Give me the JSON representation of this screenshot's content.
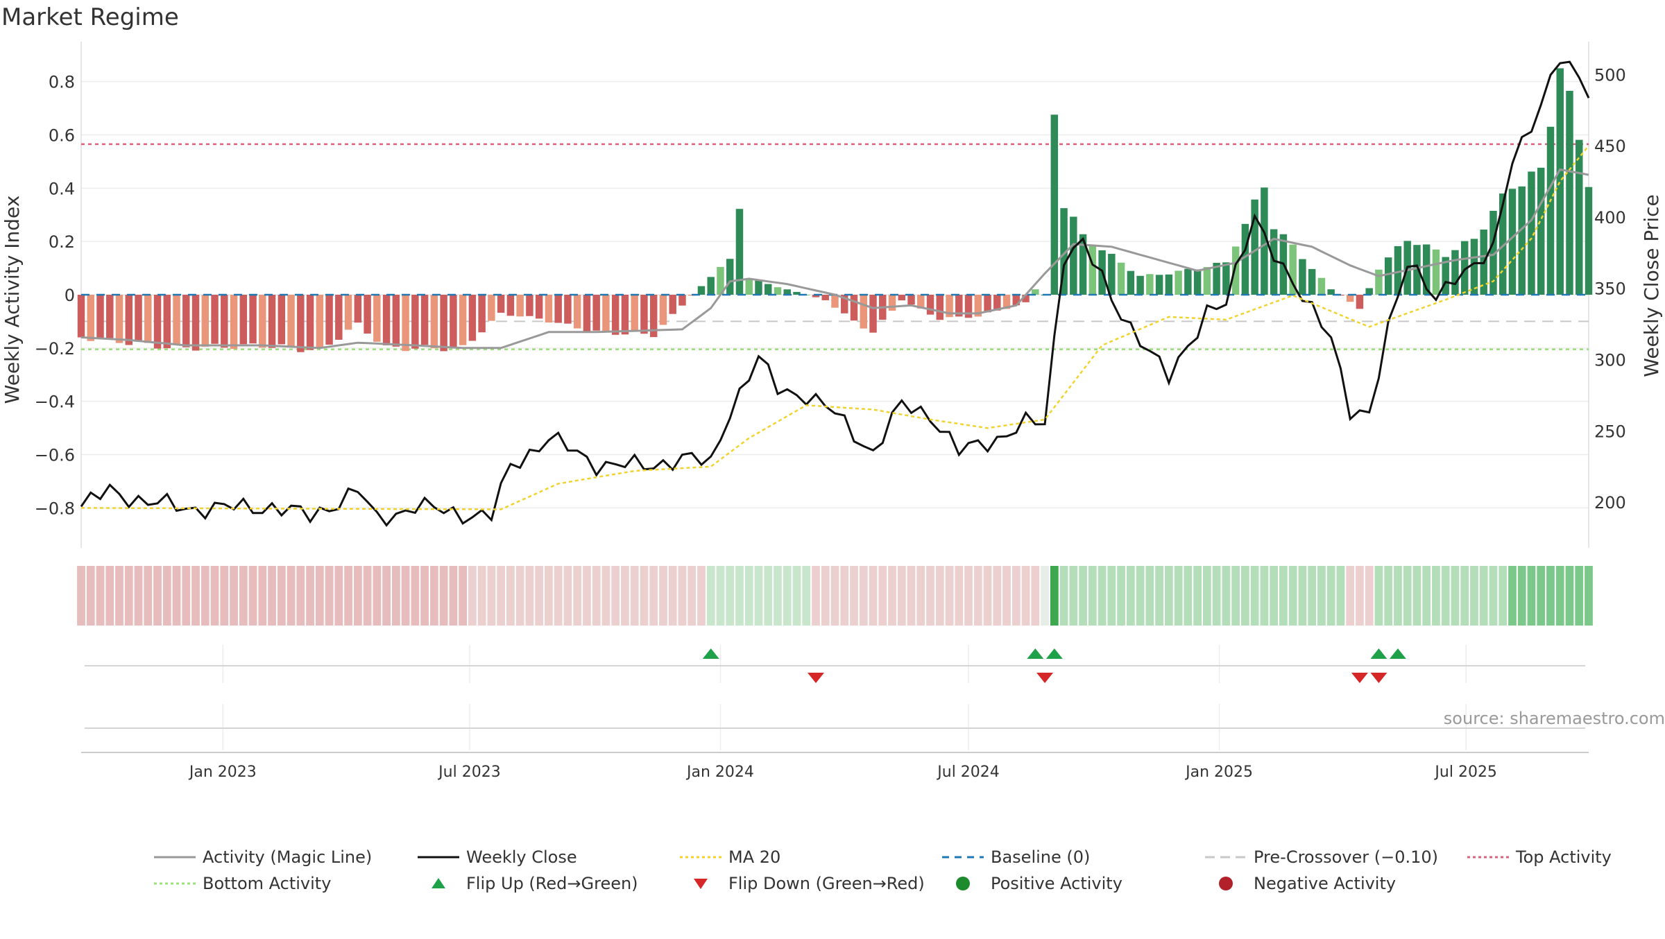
{
  "title": "Market Regime",
  "source": "source: sharemaestro.com",
  "colors": {
    "magic_line": "#999999",
    "close": "#111111",
    "ma20": "#f0d32e",
    "baseline": "#1f77b4",
    "pre_crossover": "#c8c8c8",
    "top_activity": "#e0607a",
    "bottom_activity": "#9be07a",
    "flip_up": "#1fa14a",
    "flip_down": "#d62728",
    "pos_strong": "#2e8b57",
    "pos_weak": "#7cc47a",
    "neg_strong": "#cd5c5c",
    "neg_weak": "#e9967a"
  },
  "chart_data": {
    "type": "bar",
    "title": "Market Regime",
    "x_axis": {
      "type": "date",
      "start": "2022-09-19",
      "end": "2025-09-29",
      "ticks": [
        "2023-01-01",
        "2023-07-01",
        "2024-01-01",
        "2024-07-01",
        "2025-01-01",
        "2025-07-01"
      ],
      "tick_labels": [
        "Jan 2023",
        "Jul 2023",
        "Jan 2024",
        "Jul 2024",
        "Jan 2025",
        "Jul 2025"
      ]
    },
    "y_left": {
      "label": "Weekly Activity Index",
      "range": [
        -0.95,
        0.95
      ],
      "ticks": [
        -0.8,
        -0.6,
        -0.4,
        -0.2,
        0,
        0.2,
        0.4,
        0.6,
        0.8
      ],
      "tick_labels": [
        "−0.8",
        "−0.6",
        "−0.4",
        "−0.2",
        "0",
        "0.2",
        "0.4",
        "0.6",
        "0.8"
      ]
    },
    "y_right": {
      "label": "Weekly Close Price",
      "range": [
        168,
        523
      ],
      "ticks": [
        200,
        250,
        300,
        350,
        400,
        450,
        500
      ],
      "tick_labels": [
        "200",
        "250",
        "300",
        "350",
        "400",
        "450",
        "500"
      ]
    },
    "reference_lines": {
      "baseline": 0,
      "pre_crossover": -0.1,
      "top_activity": 0.565,
      "bottom_activity": -0.205
    },
    "grid": true,
    "legend_position": "bottom",
    "series": [
      {
        "name": "Activity (Magic Line)",
        "type": "line",
        "axis": "left",
        "knots": [
          [
            "2022-09-19",
            -0.16
          ],
          [
            "2022-10-24",
            -0.17
          ],
          [
            "2022-12-05",
            -0.19
          ],
          [
            "2023-01-30",
            -0.19
          ],
          [
            "2023-03-13",
            -0.2
          ],
          [
            "2023-04-10",
            -0.18
          ],
          [
            "2023-05-22",
            -0.19
          ],
          [
            "2023-06-26",
            -0.2
          ],
          [
            "2023-07-24",
            -0.2
          ],
          [
            "2023-08-28",
            -0.14
          ],
          [
            "2023-10-02",
            -0.14
          ],
          [
            "2023-12-04",
            -0.13
          ],
          [
            "2023-12-25",
            -0.05
          ],
          [
            "2024-01-08",
            0.05
          ],
          [
            "2024-01-22",
            0.06
          ],
          [
            "2024-02-19",
            0.04
          ],
          [
            "2024-03-25",
            0.0
          ],
          [
            "2024-04-22",
            -0.05
          ],
          [
            "2024-05-20",
            -0.04
          ],
          [
            "2024-06-17",
            -0.07
          ],
          [
            "2024-07-08",
            -0.07
          ],
          [
            "2024-08-05",
            -0.04
          ],
          [
            "2024-08-26",
            0.08
          ],
          [
            "2024-09-16",
            0.19
          ],
          [
            "2024-10-14",
            0.18
          ],
          [
            "2024-11-18",
            0.13
          ],
          [
            "2024-12-16",
            0.09
          ],
          [
            "2025-01-13",
            0.12
          ],
          [
            "2025-02-10",
            0.21
          ],
          [
            "2025-03-10",
            0.18
          ],
          [
            "2025-04-07",
            0.11
          ],
          [
            "2025-04-28",
            0.07
          ],
          [
            "2025-05-26",
            0.1
          ],
          [
            "2025-06-23",
            0.13
          ],
          [
            "2025-07-21",
            0.15
          ],
          [
            "2025-08-18",
            0.28
          ],
          [
            "2025-09-08",
            0.47
          ],
          [
            "2025-09-29",
            0.45
          ]
        ]
      },
      {
        "name": "Weekly Close",
        "type": "line",
        "axis": "right",
        "knots": [
          [
            "2022-09-19",
            197
          ],
          [
            "2022-10-10",
            208
          ],
          [
            "2022-11-07",
            200
          ],
          [
            "2022-12-05",
            196
          ],
          [
            "2023-01-09",
            196
          ],
          [
            "2023-02-06",
            197
          ],
          [
            "2023-03-06",
            190
          ],
          [
            "2023-04-10",
            208
          ],
          [
            "2023-04-24",
            188
          ],
          [
            "2023-05-22",
            197
          ],
          [
            "2023-06-26",
            192
          ],
          [
            "2023-07-17",
            190
          ],
          [
            "2023-07-31",
            225
          ],
          [
            "2023-08-28",
            245
          ],
          [
            "2023-10-02",
            227
          ],
          [
            "2023-11-06",
            225
          ],
          [
            "2023-12-04",
            231
          ],
          [
            "2023-12-25",
            227
          ],
          [
            "2024-01-08",
            265
          ],
          [
            "2024-01-29",
            300
          ],
          [
            "2024-02-12",
            280
          ],
          [
            "2024-03-04",
            275
          ],
          [
            "2024-03-25",
            262
          ],
          [
            "2024-04-22",
            235
          ],
          [
            "2024-05-13",
            268
          ],
          [
            "2024-06-03",
            262
          ],
          [
            "2024-06-24",
            235
          ],
          [
            "2024-07-22",
            245
          ],
          [
            "2024-08-12",
            255
          ],
          [
            "2024-08-26",
            255
          ],
          [
            "2024-09-09",
            374
          ],
          [
            "2024-09-23",
            382
          ],
          [
            "2024-10-14",
            342
          ],
          [
            "2024-11-04",
            315
          ],
          [
            "2024-11-25",
            286
          ],
          [
            "2024-12-23",
            335
          ],
          [
            "2025-01-06",
            338
          ],
          [
            "2025-01-27",
            402
          ],
          [
            "2025-02-24",
            350
          ],
          [
            "2025-03-24",
            320
          ],
          [
            "2025-04-07",
            262
          ],
          [
            "2025-04-21",
            258
          ],
          [
            "2025-05-05",
            325
          ],
          [
            "2025-05-19",
            370
          ],
          [
            "2025-06-09",
            340
          ],
          [
            "2025-06-23",
            360
          ],
          [
            "2025-07-21",
            375
          ],
          [
            "2025-08-04",
            440
          ],
          [
            "2025-08-25",
            480
          ],
          [
            "2025-09-08",
            510
          ],
          [
            "2025-09-29",
            490
          ]
        ]
      },
      {
        "name": "MA 20",
        "type": "line",
        "axis": "right",
        "knots": [
          [
            "2022-09-19",
            196
          ],
          [
            "2023-07-24",
            195
          ],
          [
            "2023-09-04",
            213
          ],
          [
            "2023-10-30",
            222
          ],
          [
            "2023-12-25",
            225
          ],
          [
            "2024-01-22",
            245
          ],
          [
            "2024-03-04",
            268
          ],
          [
            "2024-04-22",
            265
          ],
          [
            "2024-06-03",
            258
          ],
          [
            "2024-07-15",
            252
          ],
          [
            "2024-08-26",
            258
          ],
          [
            "2024-10-07",
            310
          ],
          [
            "2024-11-25",
            330
          ],
          [
            "2025-01-06",
            328
          ],
          [
            "2025-02-24",
            345
          ],
          [
            "2025-04-21",
            323
          ],
          [
            "2025-06-16",
            342
          ],
          [
            "2025-07-21",
            355
          ],
          [
            "2025-08-18",
            385
          ],
          [
            "2025-09-08",
            425
          ],
          [
            "2025-09-29",
            450
          ]
        ]
      }
    ],
    "activity_bars": [
      [
        "2022-09-19",
        -0.16
      ],
      [
        "2022-10-24",
        -0.18
      ],
      [
        "2022-11-28",
        -0.2
      ],
      [
        "2023-01-30",
        -0.19
      ],
      [
        "2023-03-13",
        -0.21
      ],
      [
        "2023-04-10",
        -0.11
      ],
      [
        "2023-05-01",
        -0.2
      ],
      [
        "2023-06-26",
        -0.2
      ],
      [
        "2023-07-24",
        -0.07
      ],
      [
        "2023-08-21",
        -0.09
      ],
      [
        "2023-10-02",
        -0.14
      ],
      [
        "2023-11-13",
        -0.15
      ],
      [
        "2023-12-25",
        0.07
      ],
      [
        "2024-01-08",
        0.13
      ],
      [
        "2024-01-15",
        0.34
      ],
      [
        "2024-01-22",
        0.06
      ],
      [
        "2024-02-19",
        0.02
      ],
      [
        "2024-03-18",
        -0.02
      ],
      [
        "2024-04-08",
        -0.1
      ],
      [
        "2024-04-22",
        -0.14
      ],
      [
        "2024-05-13",
        -0.02
      ],
      [
        "2024-06-10",
        -0.09
      ],
      [
        "2024-07-08",
        -0.08
      ],
      [
        "2024-08-12",
        -0.03
      ],
      [
        "2024-08-19",
        0.02
      ],
      [
        "2024-08-26",
        0.0
      ],
      [
        "2024-09-02",
        0.7
      ],
      [
        "2024-09-09",
        0.34
      ],
      [
        "2024-09-23",
        0.22
      ],
      [
        "2024-11-04",
        0.07
      ],
      [
        "2024-11-25",
        0.08
      ],
      [
        "2025-01-06",
        0.12
      ],
      [
        "2025-02-03",
        0.41
      ],
      [
        "2025-02-10",
        0.26
      ],
      [
        "2025-03-24",
        0.02
      ],
      [
        "2025-04-14",
        -0.05
      ],
      [
        "2025-04-28",
        0.1
      ],
      [
        "2025-05-19",
        0.21
      ],
      [
        "2025-06-16",
        0.15
      ],
      [
        "2025-07-07",
        0.21
      ],
      [
        "2025-08-04",
        0.41
      ],
      [
        "2025-08-25",
        0.46
      ],
      [
        "2025-09-08",
        0.87
      ],
      [
        "2025-09-29",
        0.43
      ]
    ],
    "regime_strip": [
      [
        "2022-09-19",
        "2023-06-26",
        "#e6bcbc"
      ],
      [
        "2023-07-03",
        "2023-12-18",
        "#ecd0d0"
      ],
      [
        "2023-12-25",
        "2024-03-04",
        "#c8e6cc"
      ],
      [
        "2024-03-11",
        "2024-08-19",
        "#ecd0d0"
      ],
      [
        "2024-08-26",
        "2024-08-26",
        "#e6ece6"
      ],
      [
        "2024-09-02",
        "2024-09-02",
        "#3ea84e"
      ],
      [
        "2024-09-09",
        "2025-03-31",
        "#b4deba"
      ],
      [
        "2025-04-07",
        "2025-04-21",
        "#ecd0d0"
      ],
      [
        "2025-04-28",
        "2025-07-28",
        "#b4deba"
      ],
      [
        "2025-08-04",
        "2025-09-29",
        "#7cc88a"
      ]
    ],
    "signals": {
      "flip_up": [
        "2023-12-25",
        "2024-08-19",
        "2024-09-02",
        "2025-04-28",
        "2025-05-12"
      ],
      "flip_down": [
        "2024-03-11",
        "2024-08-26",
        "2025-04-14",
        "2025-04-28"
      ]
    }
  },
  "legend": [
    {
      "label": "Activity (Magic Line)",
      "kind": "line",
      "color": "#999999",
      "dash": ""
    },
    {
      "label": "Weekly Close",
      "kind": "line",
      "color": "#111111",
      "dash": ""
    },
    {
      "label": "MA 20",
      "kind": "line",
      "color": "#f0d32e",
      "dash": "4,4"
    },
    {
      "label": "Baseline (0)",
      "kind": "line",
      "color": "#1f77b4",
      "dash": "10,8"
    },
    {
      "label": "Pre-Crossover (−0.10)",
      "kind": "line",
      "color": "#c8c8c8",
      "dash": "14,8"
    },
    {
      "label": "Top Activity",
      "kind": "line",
      "color": "#e0607a",
      "dash": "4,4"
    },
    {
      "label": "Bottom Activity",
      "kind": "line",
      "color": "#9be07a",
      "dash": "4,4"
    },
    {
      "label": "Flip Up (Red→Green)",
      "kind": "triangle-up",
      "color": "#1fa14a",
      "dash": ""
    },
    {
      "label": "Flip Down (Green→Red)",
      "kind": "triangle-down",
      "color": "#d62728",
      "dash": ""
    },
    {
      "label": "Positive Activity",
      "kind": "dot",
      "color": "#1e8a2e",
      "dash": ""
    },
    {
      "label": "Negative Activity",
      "kind": "dot",
      "color": "#b2202a",
      "dash": ""
    }
  ]
}
